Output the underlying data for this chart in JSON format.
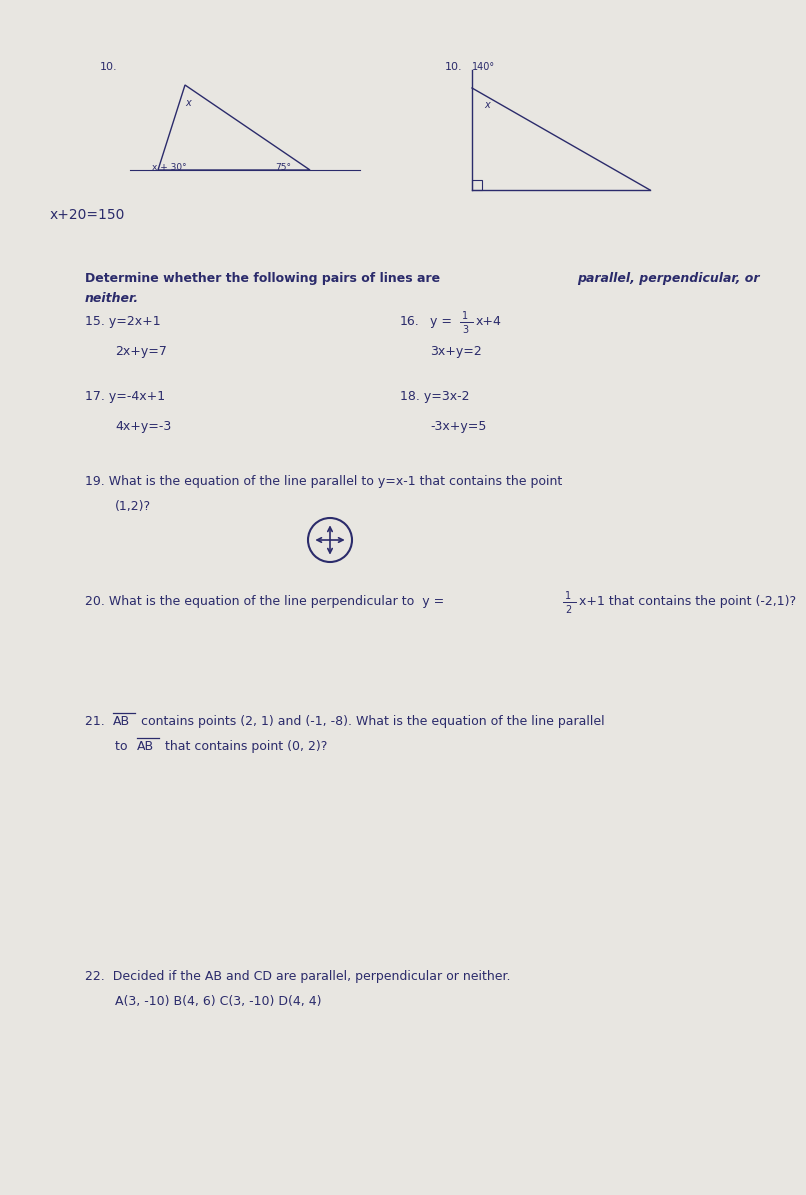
{
  "bg_color": "#e8e6e1",
  "text_color": "#2b2b6b",
  "page_width": 7.51,
  "page_height": 11.75,
  "header_line1_normal": "Determine whether the following pairs of lines are ",
  "header_line1_italic": "parallel, perpendicular, or",
  "header_line2_italic": "neither.",
  "p15_l1": "15. y=2x+1",
  "p15_l2": "2x+y=7",
  "p16_num": "16.",
  "p16_l2": "3x+y=2",
  "p17_l1": "17. y=-4x+1",
  "p17_l2": "4x+y=-3",
  "p18_l1": "18. y=3x-2",
  "p18_l2": "-3x+y=5",
  "q19_line1": "19. What is the equation of the line parallel to y=x-1 that contains the point",
  "q19_line2": "(1,2)?",
  "q20_pre": "20. What is the equation of the line perpendicular to  y=",
  "q20_post": "x+1 that contains the point (-2,1)?",
  "q21_line1_pre": "21. ",
  "q21_AB": "AB",
  "q21_line1_post": " contains points (2, 1) and (-1, -8). What is the equation of the line parallel",
  "q21_line2_pre": "     to ",
  "q21_AB2": "AB",
  "q21_line2_post": " that contains point (0, 2)?",
  "q22_line1": "22.  Decided if the AB and CD are parallel, perpendicular or neither.",
  "q22_line2": "     A(3, -10) B(4, 6) C(3, -10) D(4, 4)"
}
